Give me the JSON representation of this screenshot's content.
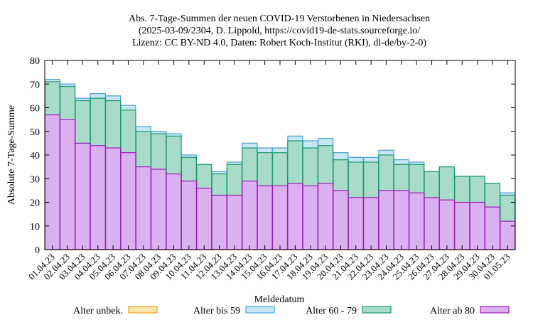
{
  "chart_data": {
    "type": "bar",
    "stacked": true,
    "title_lines": [
      "Abs. 7-Tage-Summen der neuen COVID-19 Verstorbenen in Niedersachsen",
      "(2025-03-09/2304, D. Lippold, https://covid19-de-stats.sourceforge.io/",
      "Lizenz: CC BY-ND 4.0, Daten: Robert Koch-Institut (RKI), dl-de/by-2-0)"
    ],
    "xlabel": "Meldedatum",
    "ylabel": "Absolute 7-Tage-Summe",
    "ylim": [
      0,
      80
    ],
    "yticks": [
      0,
      10,
      20,
      30,
      40,
      50,
      60,
      70,
      80
    ],
    "grid": false,
    "legend_position": "bottom",
    "categories": [
      "01.04.23",
      "02.04.23",
      "03.04.23",
      "04.04.23",
      "05.04.23",
      "06.04.23",
      "07.04.23",
      "08.04.23",
      "09.04.23",
      "10.04.23",
      "11.04.23",
      "12.04.23",
      "13.04.23",
      "14.04.23",
      "15.04.23",
      "16.04.23",
      "17.04.23",
      "18.04.23",
      "19.04.23",
      "20.04.23",
      "21.04.23",
      "22.04.23",
      "23.04.23",
      "24.04.23",
      "25.04.23",
      "26.04.23",
      "27.04.23",
      "28.04.23",
      "29.04.23",
      "30.04.23",
      "01.05.23"
    ],
    "series": [
      {
        "name": "Alter ab 80",
        "fill": "#dbb0f0",
        "stroke": "#9b1fb5",
        "values": [
          57,
          55,
          45,
          44,
          43,
          41,
          35,
          34,
          32,
          29,
          26,
          23,
          23,
          29,
          27,
          27,
          28,
          27,
          28,
          25,
          22,
          22,
          25,
          25,
          24,
          22,
          21,
          20,
          20,
          18,
          12
        ]
      },
      {
        "name": "Alter 60 - 79",
        "fill": "#a8dcc8",
        "stroke": "#1a9870",
        "values": [
          14,
          14,
          18,
          20,
          20,
          18,
          15,
          15,
          16,
          10,
          10,
          9,
          13,
          14,
          14,
          14,
          18,
          16,
          16,
          13,
          15,
          15,
          15,
          11,
          12,
          11,
          14,
          11,
          11,
          10,
          11
        ]
      },
      {
        "name": "Alter bis 59",
        "fill": "#c8e6f6",
        "stroke": "#4aa6d8",
        "values": [
          1,
          1,
          1,
          2,
          2,
          2,
          2,
          1,
          1,
          1,
          0,
          1,
          1,
          2,
          2,
          2,
          2,
          3,
          3,
          3,
          2,
          2,
          2,
          2,
          1,
          0,
          0,
          0,
          0,
          0,
          1
        ]
      },
      {
        "name": "Alter unbek.",
        "fill": "#fde6a8",
        "stroke": "#e8a020",
        "values": [
          0,
          0,
          0,
          0,
          0,
          0,
          0,
          0,
          0,
          0,
          0,
          0,
          0,
          0,
          0,
          0,
          0,
          0,
          0,
          0,
          0,
          0,
          0,
          0,
          0,
          0,
          0,
          0,
          0,
          0,
          0
        ]
      }
    ],
    "legend_order": [
      "Alter unbek.",
      "Alter bis 59",
      "Alter 60 - 79",
      "Alter ab 80"
    ]
  }
}
